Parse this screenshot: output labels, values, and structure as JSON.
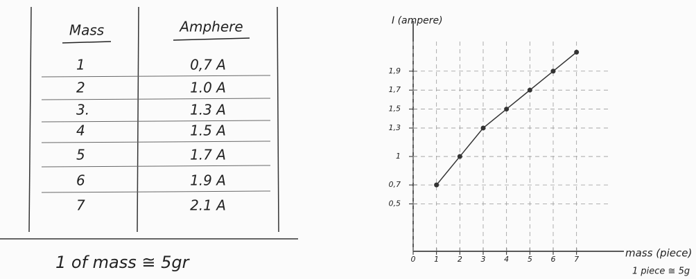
{
  "table": {
    "headers": [
      "Mass",
      "Amphere"
    ],
    "rows": [
      [
        "1",
        "0,7 A"
      ],
      [
        "2",
        "1.0 A"
      ],
      [
        "3.",
        "1.3 A"
      ],
      [
        "4",
        "1.5 A"
      ],
      [
        "5",
        "1.7 A"
      ],
      [
        "6",
        "1.9 A"
      ],
      [
        "7",
        "2.1 A"
      ]
    ],
    "footnote": "1 of mass ≅ 5gr"
  },
  "chart_data": {
    "type": "line",
    "y_label": "I (ampere)",
    "x_label": "mass (piece)",
    "note": "1 piece ≅ 5g",
    "x": [
      1,
      2,
      3,
      4,
      5,
      6,
      7
    ],
    "series": [
      {
        "color": "#333333",
        "values": [
          0.7,
          1.0,
          1.3,
          1.5,
          1.7,
          1.9,
          2.1
        ]
      }
    ],
    "xlim": [
      0,
      9
    ],
    "ylim": [
      0,
      2.3
    ],
    "xticks": [
      0,
      1,
      2,
      3,
      4,
      5,
      6,
      7
    ],
    "yticks": [
      {
        "value": 0.5,
        "label": "0,5"
      },
      {
        "value": 0.7,
        "label": "0,7"
      },
      1,
      {
        "value": 1.3,
        "label": "1,3"
      },
      {
        "value": 1.5,
        "label": "1,5"
      },
      {
        "value": 1.7,
        "label": "1,7"
      },
      {
        "value": 1.9,
        "label": "1,9"
      }
    ],
    "grid": true
  }
}
